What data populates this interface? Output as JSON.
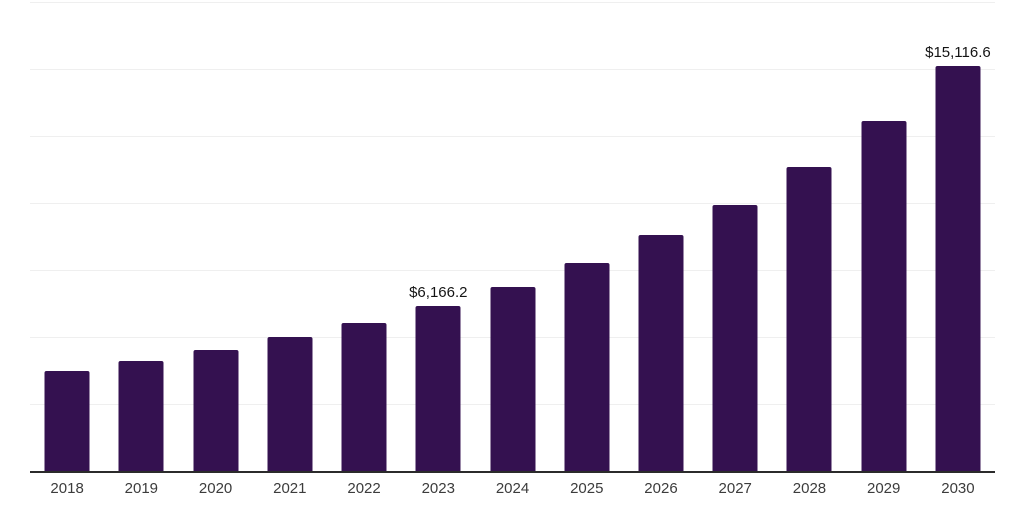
{
  "chart_data": {
    "type": "bar",
    "title": "",
    "xlabel": "",
    "ylabel": "",
    "categories": [
      "2018",
      "2019",
      "2020",
      "2021",
      "2022",
      "2023",
      "2024",
      "2025",
      "2026",
      "2027",
      "2028",
      "2029",
      "2030"
    ],
    "values": [
      3720,
      4100,
      4510,
      5010,
      5540,
      6166.2,
      6850,
      7780,
      8790,
      9930,
      11340,
      13050,
      15116.6
    ],
    "data_labels": [
      "",
      "",
      "",
      "",
      "",
      "$6,166.2",
      "",
      "",
      "",
      "",
      "",
      "",
      "$15,116.6"
    ],
    "ylim": [
      0,
      17500
    ],
    "gridline_interval": 2500,
    "gridline_count": 7,
    "grid": "horizontal only, no y-axis tick labels, no legend, no title",
    "legend_position": "none",
    "colors": {
      "bar": "#341150",
      "gridline": "#efefef",
      "axis_line": "#2b2b2b",
      "tick_label": "#3c3c3c",
      "data_label": "#141414",
      "background": "#ffffff"
    }
  }
}
